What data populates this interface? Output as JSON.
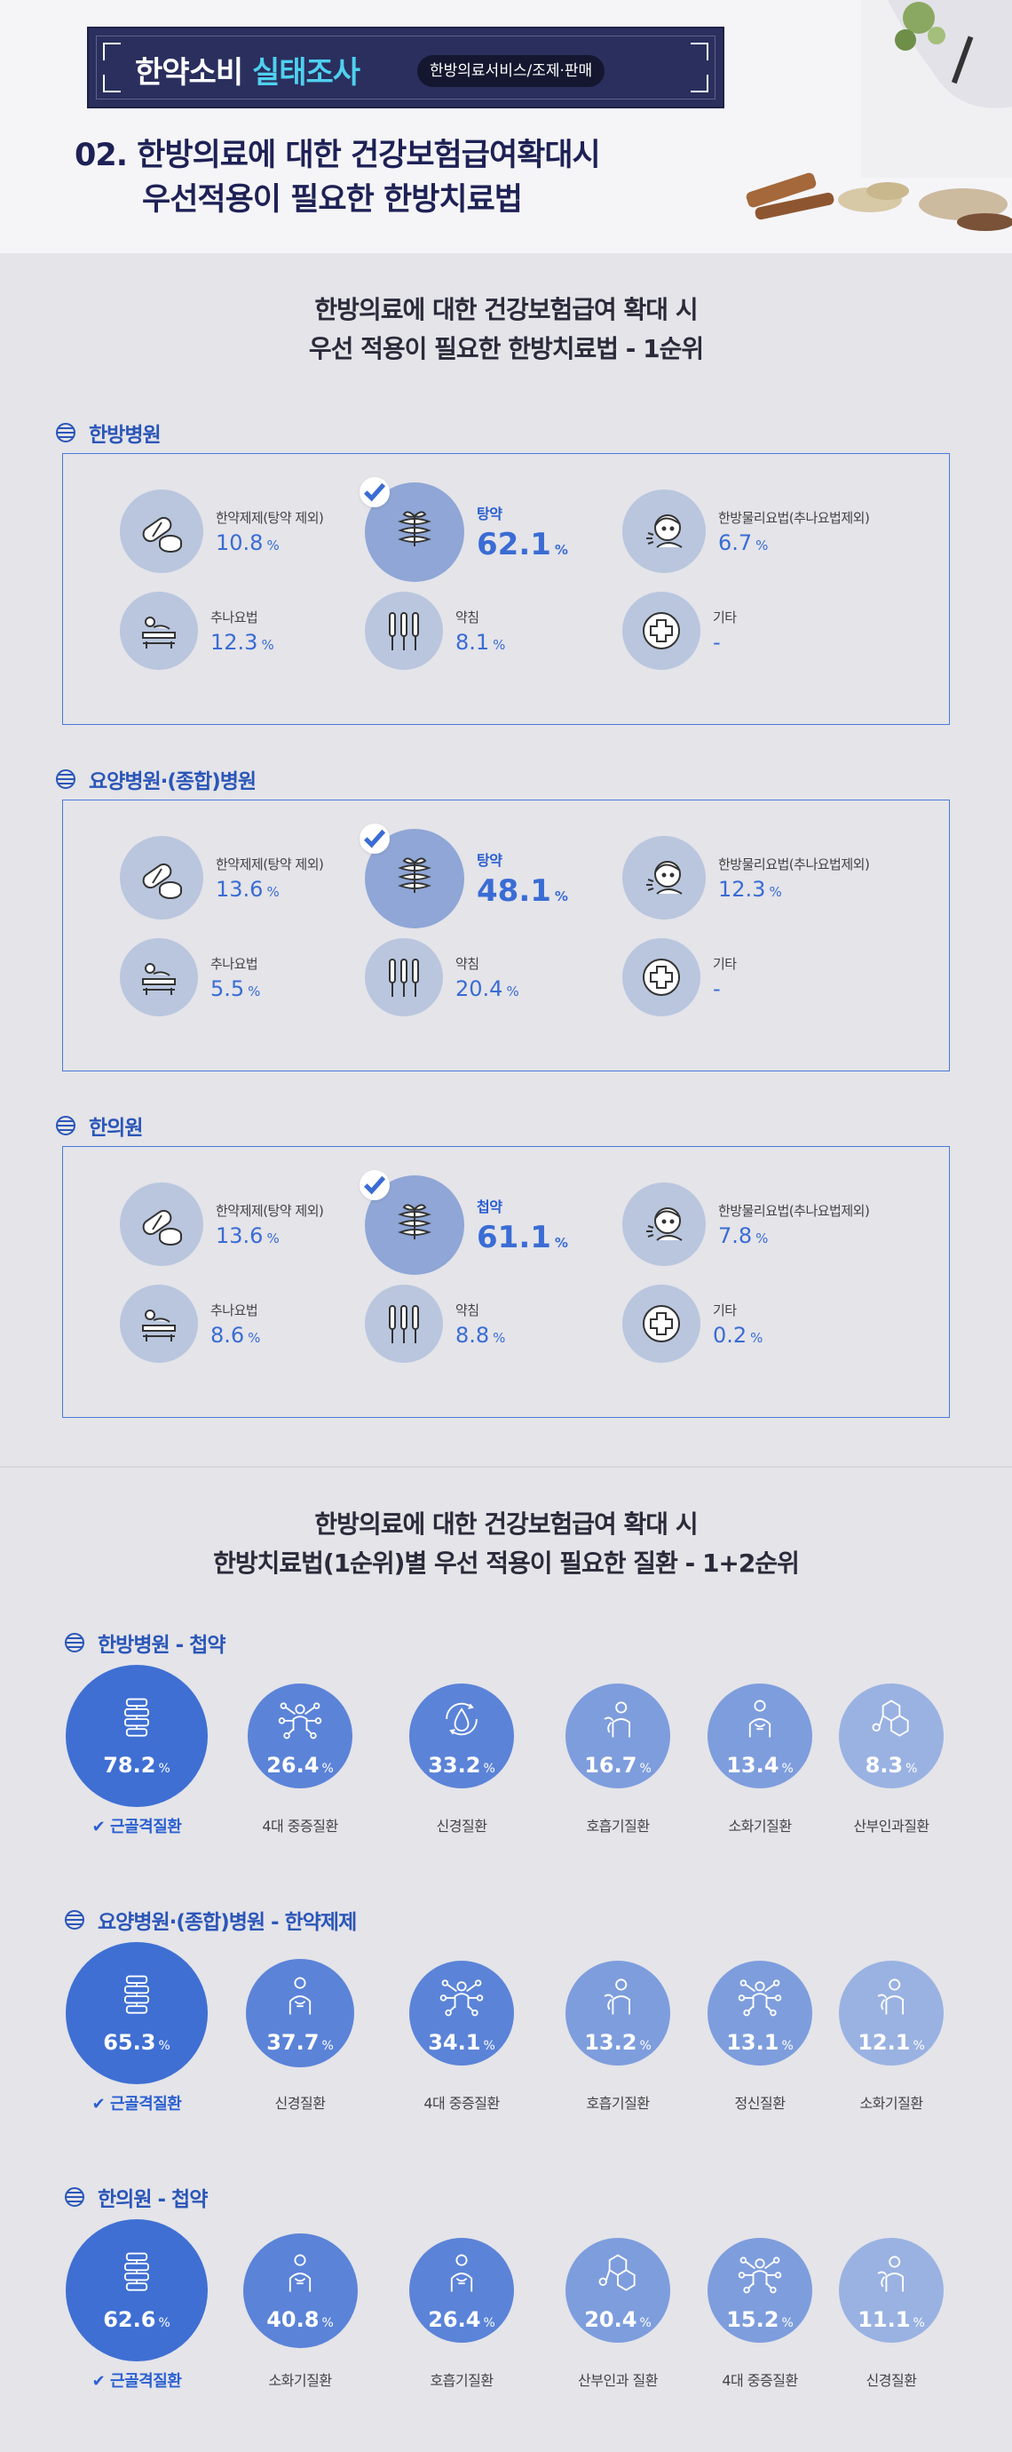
{
  "header": {
    "banner_title_part1": "한약소비",
    "banner_title_part2": "실태조사",
    "banner_tag": "한방의료서비스/조제·판매",
    "title_line1": "02. 한방의료에 대한 건강보험급여확대시",
    "title_line2": "우선적용이 필요한 한방치료법"
  },
  "section1": {
    "title_line1": "한방의료에 대한 건강보험급여 확대 시",
    "title_line2": "우선 적용이 필요한 한방치료법 - 1순위",
    "groups": [
      {
        "label": "한방병원",
        "items": [
          {
            "label": "한약제제(탕약 제외)",
            "value": "10.8",
            "unit": "%",
            "icon": "pill-icon"
          },
          {
            "label": "탕약",
            "value": "62.1",
            "unit": "%",
            "icon": "herb-pack-icon",
            "top": true
          },
          {
            "label": "한방물리요법(추나요법제외)",
            "value": "6.7",
            "unit": "%",
            "icon": "physio-face-icon"
          },
          {
            "label": "추나요법",
            "value": "12.3",
            "unit": "%",
            "icon": "chuna-icon"
          },
          {
            "label": "약침",
            "value": "8.1",
            "unit": "%",
            "icon": "acupuncture-icon"
          },
          {
            "label": "기타",
            "value": "-",
            "unit": "",
            "icon": "plus-icon"
          }
        ]
      },
      {
        "label": "요양병원·(종합)병원",
        "items": [
          {
            "label": "한약제제(탕약 제외)",
            "value": "13.6",
            "unit": "%",
            "icon": "pill-icon"
          },
          {
            "label": "탕약",
            "value": "48.1",
            "unit": "%",
            "icon": "herb-pack-icon",
            "top": true
          },
          {
            "label": "한방물리요법(추나요법제외)",
            "value": "12.3",
            "unit": "%",
            "icon": "physio-face-icon"
          },
          {
            "label": "추나요법",
            "value": "5.5",
            "unit": "%",
            "icon": "chuna-icon"
          },
          {
            "label": "약침",
            "value": "20.4",
            "unit": "%",
            "icon": "acupuncture-icon"
          },
          {
            "label": "기타",
            "value": "-",
            "unit": "",
            "icon": "plus-icon"
          }
        ]
      },
      {
        "label": "한의원",
        "items": [
          {
            "label": "한약제제(탕약 제외)",
            "value": "13.6",
            "unit": "%",
            "icon": "pill-icon"
          },
          {
            "label": "첩약",
            "value": "61.1",
            "unit": "%",
            "icon": "herb-pack-icon",
            "top": true
          },
          {
            "label": "한방물리요법(추나요법제외)",
            "value": "7.8",
            "unit": "%",
            "icon": "physio-face-icon"
          },
          {
            "label": "추나요법",
            "value": "8.6",
            "unit": "%",
            "icon": "chuna-icon"
          },
          {
            "label": "약침",
            "value": "8.8",
            "unit": "%",
            "icon": "acupuncture-icon"
          },
          {
            "label": "기타",
            "value": "0.2",
            "unit": "%",
            "icon": "plus-icon"
          }
        ]
      }
    ]
  },
  "section2": {
    "title_line1": "한방의료에 대한 건강보험급여 확대 시",
    "title_line2": "한방치료법(1순위)별 우선 적용이 필요한 질환 - 1+2순위",
    "groups": [
      {
        "label": "한방병원 - 첩약",
        "items": [
          {
            "label": "근골격질환",
            "value": "78.2",
            "icon": "spine-icon"
          },
          {
            "label": "4대 중증질환",
            "value": "26.4",
            "icon": "body-network-icon"
          },
          {
            "label": "신경질환",
            "value": "33.2",
            "icon": "drop-cycle-icon"
          },
          {
            "label": "호흡기질환",
            "value": "16.7",
            "icon": "respiratory-icon"
          },
          {
            "label": "소화기질환",
            "value": "13.4",
            "icon": "digestive-icon"
          },
          {
            "label": "산부인과질환",
            "value": "8.3",
            "icon": "molecule-icon"
          }
        ]
      },
      {
        "label": "요양병원·(종합)병원 - 한약제제",
        "items": [
          {
            "label": "근골격질환",
            "value": "65.3",
            "icon": "spine-icon"
          },
          {
            "label": "신경질환",
            "value": "37.7",
            "icon": "digestive-icon"
          },
          {
            "label": "4대 중증질환",
            "value": "34.1",
            "icon": "body-network-icon"
          },
          {
            "label": "호흡기질환",
            "value": "13.2",
            "icon": "respiratory-icon"
          },
          {
            "label": "정신질환",
            "value": "13.1",
            "icon": "body-network-icon"
          },
          {
            "label": "소화기질환",
            "value": "12.1",
            "icon": "respiratory-icon"
          }
        ]
      },
      {
        "label": "한의원 - 첩약",
        "items": [
          {
            "label": "근골격질환",
            "value": "62.6",
            "icon": "spine-icon"
          },
          {
            "label": "소화기질환",
            "value": "40.8",
            "icon": "digestive-icon"
          },
          {
            "label": "호흡기질환",
            "value": "26.4",
            "icon": "digestive-icon"
          },
          {
            "label": "산부인과 질환",
            "value": "20.4",
            "icon": "molecule-icon"
          },
          {
            "label": "4대 중증질환",
            "value": "15.2",
            "icon": "body-network-icon"
          },
          {
            "label": "신경질환",
            "value": "11.1",
            "icon": "respiratory-icon"
          }
        ]
      }
    ],
    "unit": "%"
  },
  "colors": {
    "accent": "#3a6cd4",
    "banner": "#2a2f5e",
    "highlight": "#4fd0ef"
  }
}
